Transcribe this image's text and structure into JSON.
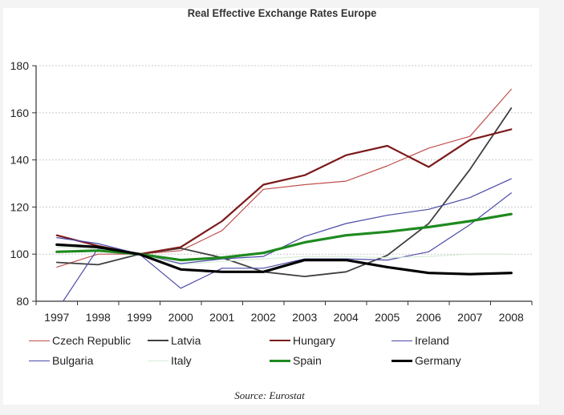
{
  "chart_data": {
    "type": "line",
    "title": "Real Effective Exchange Rates Europe",
    "source": "Source: Eurostat",
    "xlabel": "",
    "ylabel": "",
    "x": [
      "1997",
      "1998",
      "1999",
      "2000",
      "2001",
      "2002",
      "2003",
      "2004",
      "2005",
      "2006",
      "2007",
      "2008"
    ],
    "ylim": [
      80,
      180
    ],
    "yticks": [
      80,
      100,
      120,
      140,
      160,
      180
    ],
    "ytick_labels": [
      "80",
      "100",
      "120",
      "140",
      "160",
      "180"
    ],
    "grid": "horizontal-dotted",
    "legend_position": "bottom",
    "series": [
      {
        "name": "Czech Republic",
        "color": "#c0504d",
        "width": 1.2,
        "values": [
          94.5,
          100,
          100,
          101.5,
          110,
          127.5,
          129.5,
          131,
          137.5,
          145,
          150,
          170
        ]
      },
      {
        "name": "Latvia",
        "color": "#404040",
        "width": 1.8,
        "values": [
          96.5,
          95.5,
          100,
          102.5,
          98.5,
          92.5,
          90.5,
          92.5,
          99.5,
          113,
          136,
          162
        ]
      },
      {
        "name": "Hungary",
        "color": "#7b1a1a",
        "width": 2.2,
        "values": [
          108,
          103.5,
          100,
          103,
          114,
          129.5,
          133.5,
          142,
          146,
          137,
          148.5,
          153
        ]
      },
      {
        "name": "Ireland",
        "color": "#4a4aa8",
        "width": 1.2,
        "values": [
          107,
          104.5,
          100,
          96,
          98,
          99,
          107.5,
          113,
          116.5,
          119,
          124,
          132
        ]
      },
      {
        "name": "Bulgaria",
        "color": "#4a4aa8",
        "width": 1.2,
        "values": [
          76,
          102.5,
          100,
          85.5,
          94,
          94,
          98,
          98,
          97.5,
          101,
          112.5,
          126
        ]
      },
      {
        "name": "Italy",
        "color": "#d8ecd8",
        "width": 1.2,
        "values": [
          103,
          102,
          100,
          95.5,
          97,
          98,
          99,
          99,
          98.5,
          99,
          100,
          100
        ]
      },
      {
        "name": "Spain",
        "color": "#1e8a1e",
        "width": 3.2,
        "values": [
          101,
          101.5,
          100,
          97.5,
          98.5,
          100.5,
          105,
          108,
          109.5,
          111.5,
          114,
          117
        ]
      },
      {
        "name": "Germany",
        "color": "#000000",
        "width": 3.2,
        "values": [
          104,
          103,
          100,
          93.5,
          92.5,
          92.5,
          97.5,
          97.5,
          94.5,
          92,
          91.5,
          92
        ]
      }
    ]
  }
}
